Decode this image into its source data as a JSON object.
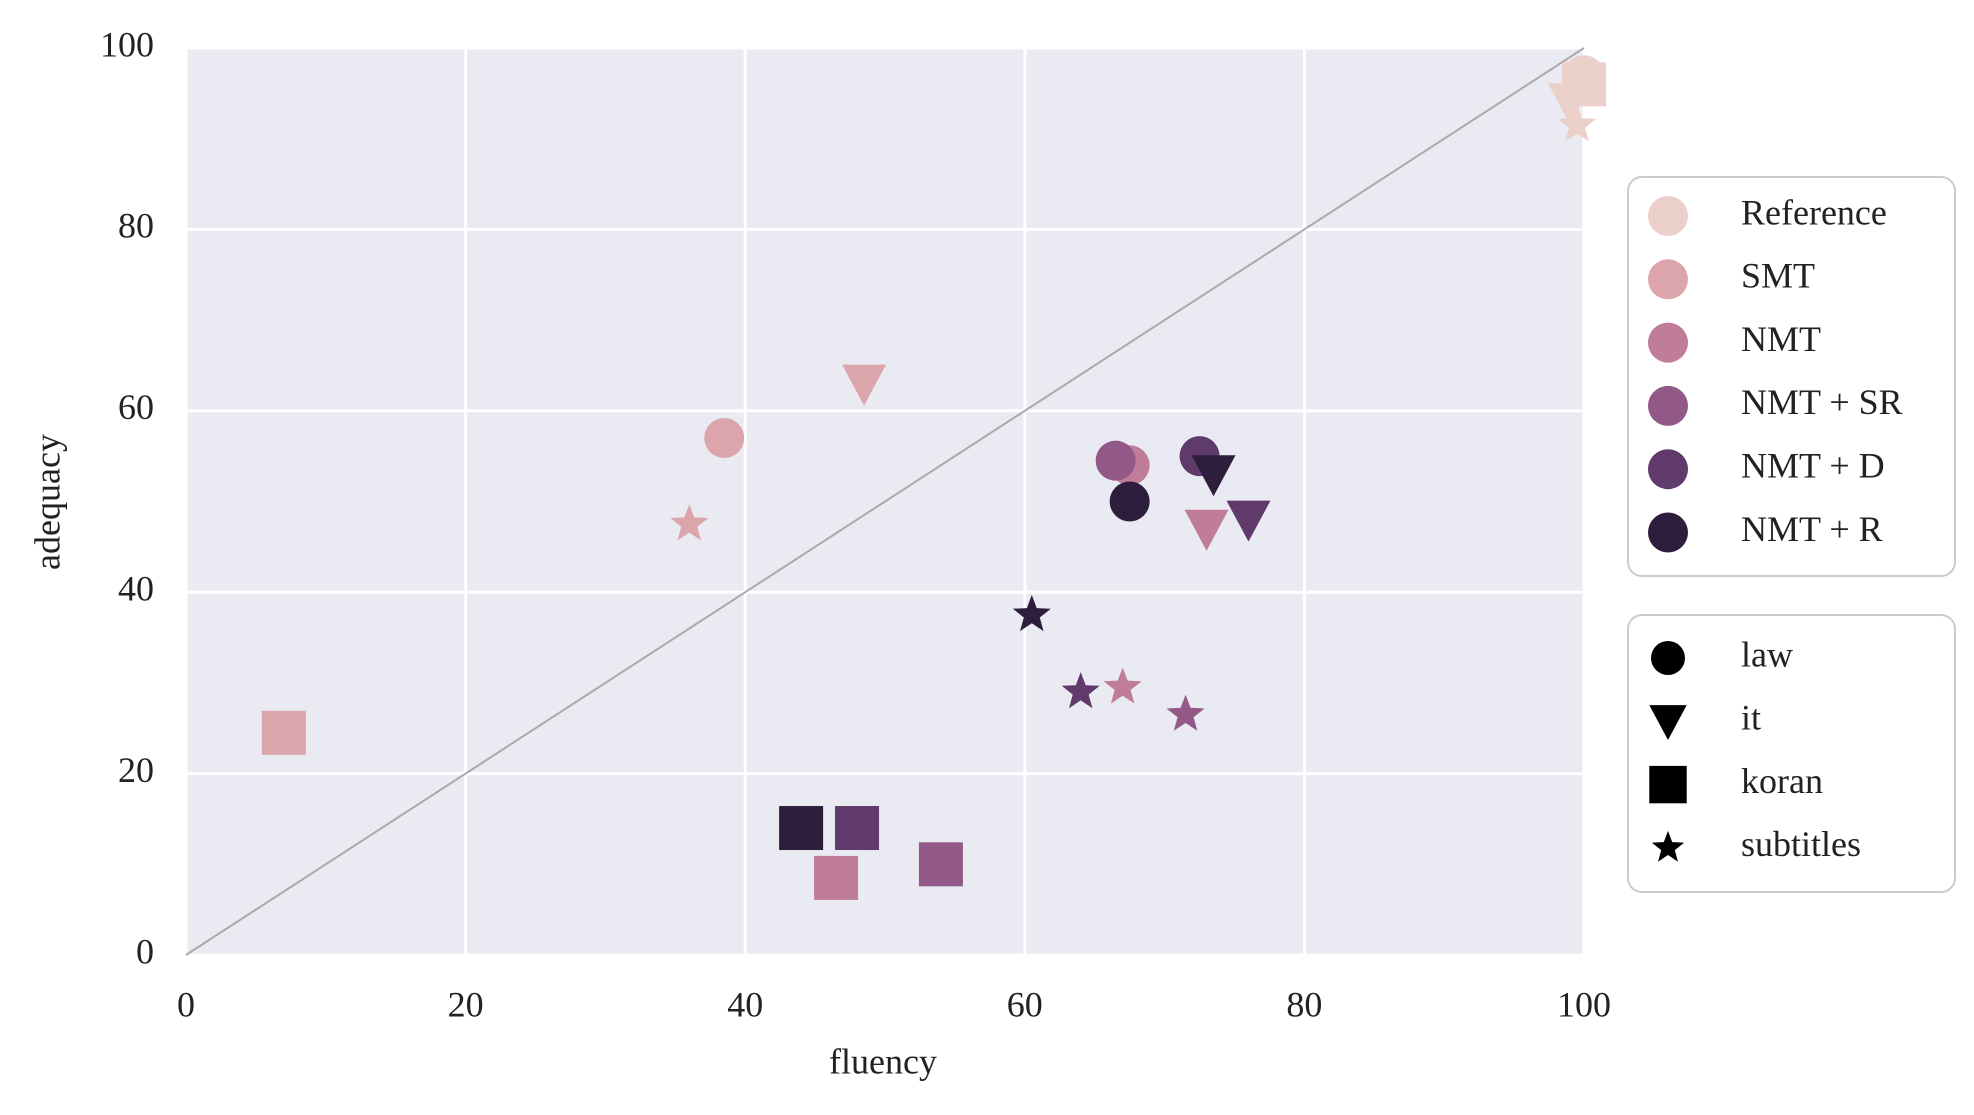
{
  "chart_data": {
    "type": "scatter",
    "x_label": "fluency",
    "y_label": "adequacy",
    "xlim": [
      0,
      100
    ],
    "ylim": [
      0,
      100
    ],
    "xticks": [
      0,
      20,
      40,
      60,
      80,
      100
    ],
    "yticks": [
      0,
      20,
      40,
      60,
      80,
      100
    ],
    "grid": true,
    "markers": [
      {
        "name": "law",
        "shape": "circle"
      },
      {
        "name": "it",
        "shape": "triangle-down"
      },
      {
        "name": "koran",
        "shape": "square"
      },
      {
        "name": "subtitles",
        "shape": "star"
      }
    ],
    "series": [
      {
        "name": "Reference",
        "color": "#ebd0c9",
        "x": [
          100,
          99,
          100,
          99.5
        ],
        "values": [
          97,
          94,
          96,
          91.5
        ]
      },
      {
        "name": "SMT",
        "color": "#dca4ab",
        "x": [
          38.5,
          48.5,
          7,
          36
        ],
        "values": [
          57,
          63,
          24.5,
          47.5
        ]
      },
      {
        "name": "NMT",
        "color": "#bf7d9a",
        "x": [
          67.5,
          73,
          46.5,
          67
        ],
        "values": [
          54,
          47,
          8.5,
          29.5
        ]
      },
      {
        "name": "NMT + SR",
        "color": "#925888",
        "x": [
          66.5,
          null,
          54,
          71.5
        ],
        "values": [
          54.5,
          null,
          10,
          26.5
        ]
      },
      {
        "name": "NMT + D",
        "color": "#5f3a6a",
        "x": [
          72.5,
          76,
          48,
          64
        ],
        "values": [
          55,
          48,
          14,
          29
        ]
      },
      {
        "name": "NMT + R",
        "color": "#2d1e3e",
        "x": [
          67.5,
          73.5,
          44,
          60.5
        ],
        "values": [
          50,
          53,
          14,
          37.5
        ]
      }
    ]
  }
}
